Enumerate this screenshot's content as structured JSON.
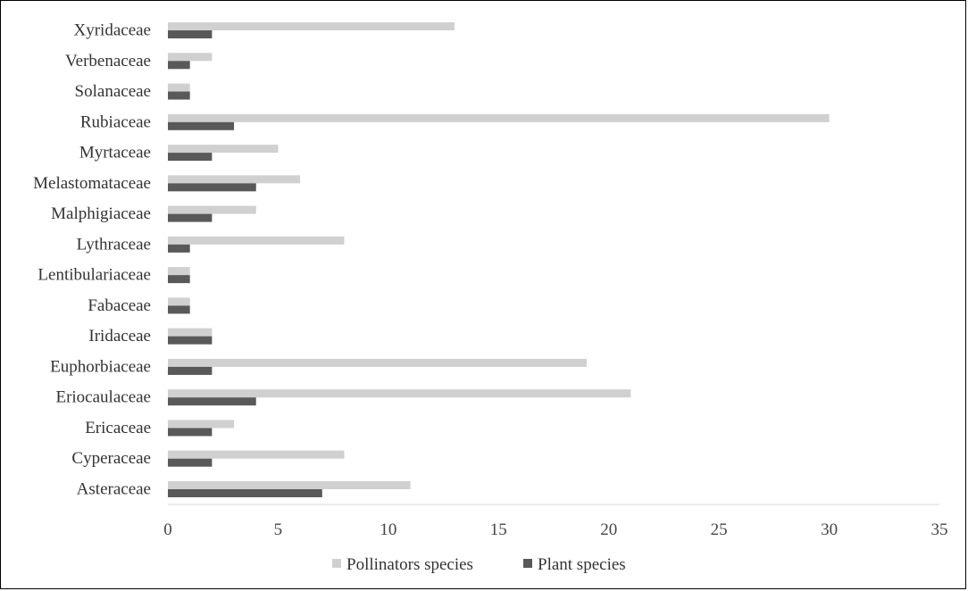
{
  "chart_data": {
    "type": "bar",
    "orientation": "horizontal",
    "categories": [
      "Asteraceae",
      "Cyperaceae",
      "Ericaceae",
      "Eriocaulaceae",
      "Euphorbiaceae",
      "Iridaceae",
      "Fabaceae",
      "Lentibulariaceae",
      "Lythraceae",
      "Malphigiaceae",
      "Melastomataceae",
      "Myrtaceae",
      "Rubiaceae",
      "Solanaceae",
      "Verbenaceae",
      "Xyridaceae"
    ],
    "series": [
      {
        "name": "Pollinators species",
        "color": "#d0d0d0",
        "values": [
          11,
          8,
          3,
          21,
          19,
          2,
          1,
          1,
          8,
          4,
          6,
          5,
          30,
          1,
          2,
          13
        ]
      },
      {
        "name": "Plant species",
        "color": "#595959",
        "values": [
          7,
          2,
          2,
          4,
          2,
          2,
          1,
          1,
          1,
          2,
          4,
          2,
          3,
          1,
          1,
          2
        ]
      }
    ],
    "x_ticks": [
      "0",
      "5",
      "10",
      "15",
      "20",
      "25",
      "30",
      "35"
    ],
    "xlim": [
      0,
      35
    ],
    "legend_position": "bottom",
    "grid": false
  }
}
